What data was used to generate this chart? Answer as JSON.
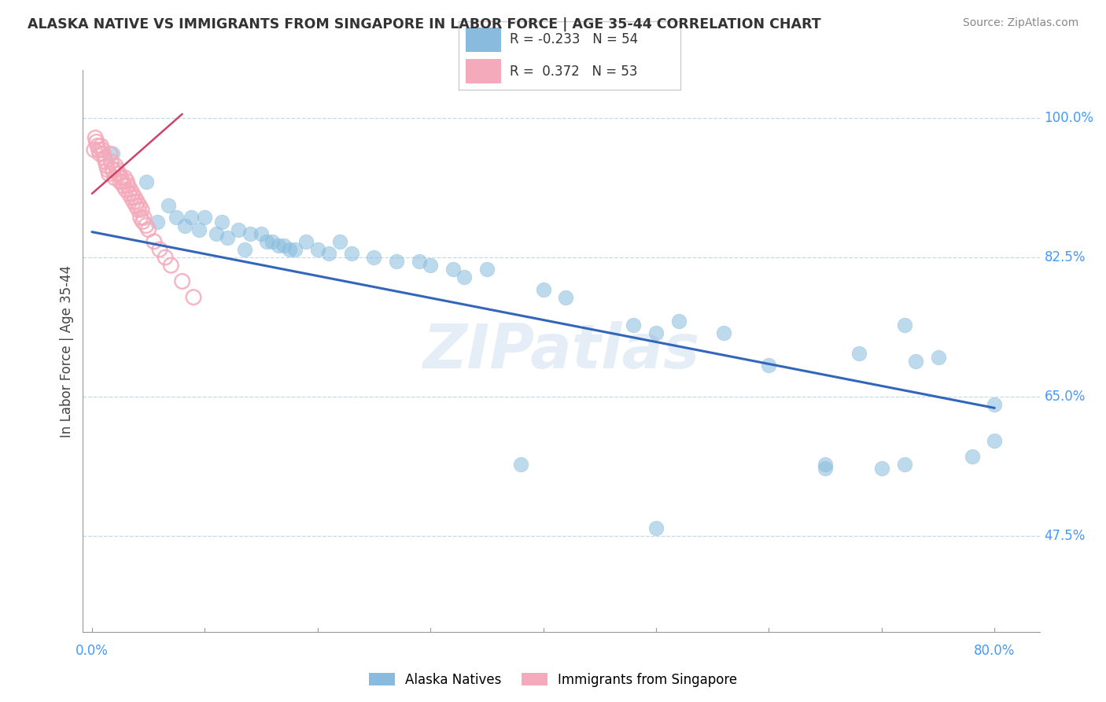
{
  "title": "ALASKA NATIVE VS IMMIGRANTS FROM SINGAPORE IN LABOR FORCE | AGE 35-44 CORRELATION CHART",
  "source": "Source: ZipAtlas.com",
  "ylabel": "In Labor Force | Age 35-44",
  "right_yticks": [
    0.475,
    0.65,
    0.825,
    1.0
  ],
  "right_yticklabels": [
    "47.5%",
    "65.0%",
    "82.5%",
    "100.0%"
  ],
  "ylim": [
    0.355,
    1.06
  ],
  "xlim": [
    -0.008,
    0.84
  ],
  "xtick_left_label": "0.0%",
  "xtick_right_label": "80.0%",
  "legend_line1": "R = -0.233   N = 54",
  "legend_line2": "R =  0.372   N = 53",
  "blue_color": "#88BBDD",
  "pink_color": "#F4AABB",
  "trend_blue": "#3366BB",
  "trend_pink": "#CC4466",
  "watermark": "ZIPatlas",
  "blue_scatter_x": [
    0.018,
    0.048,
    0.058,
    0.068,
    0.075,
    0.082,
    0.088,
    0.095,
    0.1,
    0.11,
    0.115,
    0.12,
    0.13,
    0.135,
    0.14,
    0.15,
    0.155,
    0.16,
    0.165,
    0.17,
    0.175,
    0.18,
    0.19,
    0.2,
    0.21,
    0.22,
    0.23,
    0.25,
    0.27,
    0.29,
    0.3,
    0.32,
    0.33,
    0.35,
    0.38,
    0.4,
    0.42,
    0.48,
    0.5,
    0.52,
    0.56,
    0.6,
    0.65,
    0.68,
    0.7,
    0.72,
    0.73,
    0.75,
    0.78,
    0.8,
    0.8,
    0.72,
    0.65,
    0.5
  ],
  "blue_scatter_y": [
    0.955,
    0.92,
    0.87,
    0.89,
    0.875,
    0.865,
    0.875,
    0.86,
    0.875,
    0.855,
    0.87,
    0.85,
    0.86,
    0.835,
    0.855,
    0.855,
    0.845,
    0.845,
    0.84,
    0.84,
    0.835,
    0.835,
    0.845,
    0.835,
    0.83,
    0.845,
    0.83,
    0.825,
    0.82,
    0.82,
    0.815,
    0.81,
    0.8,
    0.81,
    0.565,
    0.785,
    0.775,
    0.74,
    0.73,
    0.745,
    0.73,
    0.69,
    0.56,
    0.705,
    0.56,
    0.565,
    0.695,
    0.7,
    0.575,
    0.595,
    0.64,
    0.74,
    0.565,
    0.485
  ],
  "pink_scatter_x": [
    0.002,
    0.003,
    0.004,
    0.005,
    0.006,
    0.007,
    0.008,
    0.009,
    0.01,
    0.011,
    0.012,
    0.013,
    0.014,
    0.015,
    0.016,
    0.017,
    0.018,
    0.019,
    0.02,
    0.021,
    0.022,
    0.023,
    0.024,
    0.025,
    0.026,
    0.027,
    0.028,
    0.029,
    0.03,
    0.031,
    0.032,
    0.033,
    0.034,
    0.035,
    0.036,
    0.037,
    0.038,
    0.039,
    0.04,
    0.041,
    0.042,
    0.043,
    0.044,
    0.045,
    0.046,
    0.048,
    0.05,
    0.055,
    0.06,
    0.065,
    0.07,
    0.08,
    0.09
  ],
  "pink_scatter_y": [
    0.96,
    0.975,
    0.97,
    0.965,
    0.96,
    0.955,
    0.965,
    0.96,
    0.955,
    0.95,
    0.945,
    0.94,
    0.935,
    0.93,
    0.955,
    0.945,
    0.935,
    0.935,
    0.925,
    0.94,
    0.935,
    0.93,
    0.93,
    0.92,
    0.925,
    0.92,
    0.915,
    0.925,
    0.91,
    0.92,
    0.915,
    0.905,
    0.91,
    0.9,
    0.905,
    0.895,
    0.9,
    0.89,
    0.895,
    0.885,
    0.89,
    0.875,
    0.885,
    0.87,
    0.875,
    0.865,
    0.86,
    0.845,
    0.835,
    0.825,
    0.815,
    0.795,
    0.775
  ],
  "blue_trend_x": [
    0.0,
    0.8
  ],
  "blue_trend_y": [
    0.857,
    0.636
  ],
  "pink_trend_x": [
    0.0,
    0.08
  ],
  "pink_trend_y": [
    0.905,
    1.005
  ],
  "grid_yticks": [
    0.475,
    0.65,
    0.825,
    1.0
  ],
  "n_xticks": 9
}
